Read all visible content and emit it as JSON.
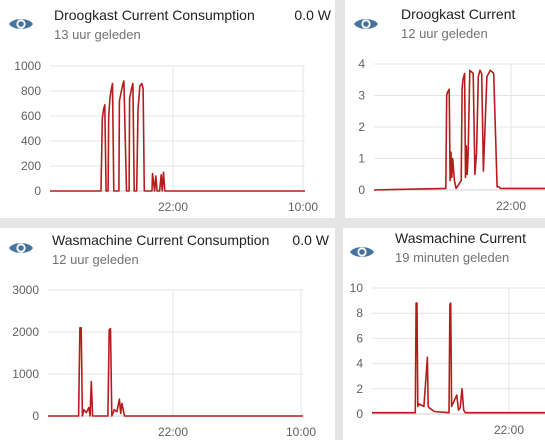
{
  "cards": [
    {
      "title": "Droogkast Current Consumption",
      "subtitle": "13 uur geleden",
      "value": "0.0 W",
      "icon": "eye-icon",
      "chart_data": {
        "type": "line",
        "ylim": [
          0,
          1000
        ],
        "y_ticks": [
          "1000",
          "800",
          "600",
          "400",
          "200",
          "0"
        ],
        "x_ticks": [
          "22:00",
          "10:00"
        ],
        "series_color": "#b71c1c",
        "x": [
          0,
          0.2,
          0.205,
          0.21,
          0.215,
          0.22,
          0.228,
          0.23,
          0.235,
          0.24,
          0.245,
          0.25,
          0.27,
          0.272,
          0.28,
          0.285,
          0.29,
          0.3,
          0.31,
          0.312,
          0.32,
          0.325,
          0.33,
          0.34,
          0.345,
          0.35,
          0.352,
          0.36,
          0.365,
          0.37,
          0.38,
          0.4,
          0.402,
          0.41,
          0.415,
          0.42,
          0.43,
          0.436,
          0.44,
          0.445,
          0.45,
          0.455,
          1
        ],
        "values": [
          0,
          0,
          580,
          650,
          690,
          0,
          0,
          590,
          740,
          810,
          860,
          0,
          0,
          720,
          800,
          850,
          880,
          0,
          0,
          740,
          820,
          860,
          0,
          0,
          650,
          780,
          840,
          860,
          820,
          0,
          0,
          0,
          140,
          0,
          120,
          0,
          0,
          130,
          0,
          150,
          0,
          0,
          0
        ]
      }
    },
    {
      "title": "Droogkast Current",
      "subtitle": "12 uur geleden",
      "value": "",
      "icon": "eye-icon",
      "chart_data": {
        "type": "line",
        "ylim": [
          0,
          4
        ],
        "y_ticks": [
          "4",
          "3",
          "2",
          "1",
          "0"
        ],
        "x_ticks": [
          "22:00"
        ],
        "series_color": "#b71c1c",
        "x": [
          0,
          0.42,
          0.425,
          0.43,
          0.44,
          0.445,
          0.45,
          0.455,
          0.46,
          0.47,
          0.48,
          0.51,
          0.515,
          0.52,
          0.53,
          0.535,
          0.54,
          0.545,
          0.55,
          0.56,
          0.58,
          0.59,
          0.6,
          0.61,
          0.62,
          0.63,
          0.64,
          0.66,
          0.68,
          0.7,
          0.72,
          0.73,
          0.74,
          1
        ],
        "values": [
          0,
          0.05,
          3.0,
          3.1,
          3.2,
          0.3,
          1.2,
          0.4,
          1.0,
          0.3,
          0.05,
          0.3,
          3.2,
          3.5,
          3.7,
          0.4,
          1.4,
          0.5,
          1.1,
          3.8,
          3.7,
          0.5,
          1.2,
          3.6,
          3.8,
          3.7,
          0.6,
          3.6,
          3.8,
          3.7,
          0.1,
          0.1,
          0.05,
          0.05
        ]
      }
    },
    {
      "title": "Wasmachine Current Consumption",
      "subtitle": "12 uur geleden",
      "value": "0.0 W",
      "icon": "eye-icon",
      "chart_data": {
        "type": "line",
        "ylim": [
          0,
          3000
        ],
        "y_ticks": [
          "3000",
          "2000",
          "1000",
          "0"
        ],
        "x_ticks": [
          "22:00",
          "10:00"
        ],
        "series_color": "#b71c1c",
        "x": [
          0,
          0.12,
          0.125,
          0.13,
          0.135,
          0.14,
          0.15,
          0.16,
          0.165,
          0.17,
          0.175,
          0.18,
          0.19,
          0.235,
          0.24,
          0.245,
          0.25,
          0.26,
          0.27,
          0.28,
          0.285,
          0.29,
          0.3,
          1
        ],
        "values": [
          0,
          0,
          2100,
          2100,
          0,
          150,
          80,
          200,
          0,
          820,
          0,
          0,
          0,
          0,
          2050,
          2080,
          0,
          150,
          100,
          400,
          60,
          300,
          0,
          0
        ]
      }
    },
    {
      "title": "Wasmachine Current",
      "subtitle": "19 minuten geleden",
      "value": "",
      "icon": "eye-icon",
      "chart_data": {
        "type": "line",
        "ylim": [
          0,
          10
        ],
        "y_ticks": [
          "10",
          "8",
          "6",
          "4",
          "2",
          "0"
        ],
        "x_ticks": [
          "22:00"
        ],
        "series_color": "#b71c1c",
        "x": [
          0,
          0.25,
          0.255,
          0.26,
          0.265,
          0.27,
          0.3,
          0.32,
          0.325,
          0.33,
          0.36,
          0.445,
          0.45,
          0.455,
          0.46,
          0.48,
          0.49,
          0.5,
          0.51,
          0.52,
          0.53,
          0.54,
          0.55,
          1
        ],
        "values": [
          0.1,
          0.1,
          8.8,
          8.8,
          0.6,
          0.8,
          0.6,
          4.5,
          0.6,
          0.5,
          0.2,
          0.1,
          8.7,
          8.8,
          0.6,
          1.2,
          1.5,
          0.3,
          0.5,
          2.0,
          0.3,
          0.1,
          0.1,
          0.1
        ]
      }
    }
  ]
}
